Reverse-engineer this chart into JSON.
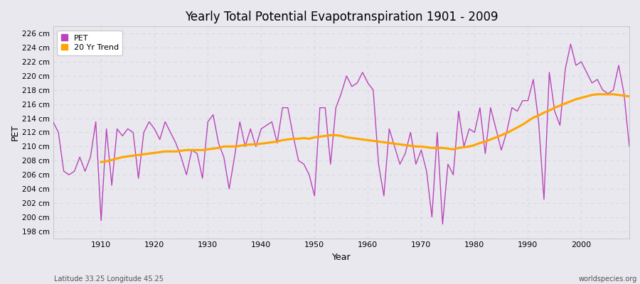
{
  "title": "Yearly Total Potential Evapotranspiration 1901 - 2009",
  "xlabel": "Year",
  "ylabel": "PET",
  "footnote_left": "Latitude 33.25 Longitude 45.25",
  "footnote_right": "worldspecies.org",
  "pet_color": "#bb44bb",
  "trend_color": "#ffa500",
  "background_color": "#e8e8ee",
  "grid_color": "#d8d8e0",
  "ylim": [
    197,
    227
  ],
  "yticks": [
    198,
    200,
    202,
    204,
    206,
    208,
    210,
    212,
    214,
    216,
    218,
    220,
    222,
    224,
    226
  ],
  "xlim": [
    1901,
    2009
  ],
  "xticks": [
    1910,
    1920,
    1930,
    1940,
    1950,
    1960,
    1970,
    1980,
    1990,
    2000
  ],
  "years": [
    1901,
    1902,
    1903,
    1904,
    1905,
    1906,
    1907,
    1908,
    1909,
    1910,
    1911,
    1912,
    1913,
    1914,
    1915,
    1916,
    1917,
    1918,
    1919,
    1920,
    1921,
    1922,
    1923,
    1924,
    1925,
    1926,
    1927,
    1928,
    1929,
    1930,
    1931,
    1932,
    1933,
    1934,
    1935,
    1936,
    1937,
    1938,
    1939,
    1940,
    1941,
    1942,
    1943,
    1944,
    1945,
    1946,
    1947,
    1948,
    1949,
    1950,
    1951,
    1952,
    1953,
    1954,
    1955,
    1956,
    1957,
    1958,
    1959,
    1960,
    1961,
    1962,
    1963,
    1964,
    1965,
    1966,
    1967,
    1968,
    1969,
    1970,
    1971,
    1972,
    1973,
    1974,
    1975,
    1976,
    1977,
    1978,
    1979,
    1980,
    1981,
    1982,
    1983,
    1984,
    1985,
    1986,
    1987,
    1988,
    1989,
    1990,
    1991,
    1992,
    1993,
    1994,
    1995,
    1996,
    1997,
    1998,
    1999,
    2000,
    2001,
    2002,
    2003,
    2004,
    2005,
    2006,
    2007,
    2008,
    2009
  ],
  "pet_values": [
    213.5,
    212.0,
    206.5,
    206.0,
    206.5,
    208.5,
    206.5,
    208.5,
    213.5,
    199.5,
    212.5,
    204.5,
    212.5,
    211.5,
    212.5,
    212.0,
    205.5,
    212.0,
    213.5,
    212.5,
    211.0,
    213.5,
    212.0,
    210.5,
    208.5,
    206.0,
    209.5,
    209.0,
    205.5,
    213.5,
    214.5,
    210.5,
    208.5,
    204.0,
    208.5,
    213.5,
    210.0,
    212.5,
    210.0,
    212.5,
    213.0,
    213.5,
    210.5,
    215.5,
    215.5,
    211.5,
    208.0,
    207.5,
    206.0,
    203.0,
    215.5,
    215.5,
    207.5,
    215.5,
    217.5,
    220.0,
    218.5,
    219.0,
    220.5,
    219.0,
    218.0,
    207.5,
    203.0,
    212.5,
    210.0,
    207.5,
    209.0,
    212.0,
    207.5,
    209.5,
    206.5,
    200.0,
    212.0,
    199.0,
    207.5,
    206.0,
    215.0,
    210.0,
    212.5,
    212.0,
    215.5,
    209.0,
    215.5,
    212.5,
    209.5,
    212.0,
    215.5,
    215.0,
    216.5,
    216.5,
    219.5,
    213.5,
    202.5,
    220.5,
    215.0,
    213.0,
    221.0,
    224.5,
    221.5,
    222.0,
    220.5,
    219.0,
    219.5,
    218.0,
    217.5,
    218.0,
    221.5,
    217.5,
    210.0
  ],
  "trend_years": [
    1910,
    1911,
    1912,
    1913,
    1914,
    1915,
    1916,
    1917,
    1918,
    1919,
    1920,
    1921,
    1922,
    1923,
    1924,
    1925,
    1926,
    1927,
    1928,
    1929,
    1930,
    1931,
    1932,
    1933,
    1934,
    1935,
    1936,
    1937,
    1938,
    1939,
    1940,
    1941,
    1942,
    1943,
    1944,
    1945,
    1946,
    1947,
    1948,
    1949,
    1950,
    1951,
    1952,
    1953,
    1954,
    1955,
    1956,
    1957,
    1958,
    1959,
    1960,
    1961,
    1962,
    1963,
    1964,
    1965,
    1966,
    1967,
    1968,
    1969,
    1970,
    1971,
    1972,
    1973,
    1974,
    1975,
    1976,
    1977,
    1978,
    1979,
    1980,
    1981,
    1982,
    1983,
    1984,
    1985,
    1986,
    1987,
    1988,
    1989,
    1990,
    1991,
    1992,
    1993,
    1994,
    1995,
    1996,
    1997,
    1998,
    1999,
    2000,
    2001,
    2002,
    2003,
    2004,
    2005,
    2006,
    2007,
    2008,
    2009
  ],
  "trend_values": [
    207.8,
    207.9,
    208.1,
    208.3,
    208.5,
    208.6,
    208.7,
    208.8,
    208.9,
    209.0,
    209.1,
    209.2,
    209.3,
    209.3,
    209.3,
    209.4,
    209.5,
    209.5,
    209.5,
    209.5,
    209.6,
    209.7,
    209.8,
    210.0,
    210.0,
    210.0,
    210.1,
    210.2,
    210.3,
    210.3,
    210.4,
    210.5,
    210.6,
    210.7,
    210.9,
    211.0,
    211.1,
    211.1,
    211.2,
    211.1,
    211.3,
    211.4,
    211.5,
    211.6,
    211.6,
    211.5,
    211.3,
    211.2,
    211.1,
    211.0,
    210.9,
    210.8,
    210.7,
    210.6,
    210.5,
    210.4,
    210.3,
    210.2,
    210.1,
    210.0,
    210.0,
    209.9,
    209.8,
    209.8,
    209.8,
    209.7,
    209.6,
    209.8,
    209.9,
    210.0,
    210.2,
    210.5,
    210.7,
    211.0,
    211.3,
    211.6,
    211.9,
    212.3,
    212.7,
    213.1,
    213.6,
    214.1,
    214.4,
    214.8,
    215.1,
    215.5,
    215.8,
    216.1,
    216.4,
    216.7,
    216.9,
    217.1,
    217.3,
    217.4,
    217.4,
    217.4,
    217.4,
    217.3,
    217.2,
    217.1
  ]
}
